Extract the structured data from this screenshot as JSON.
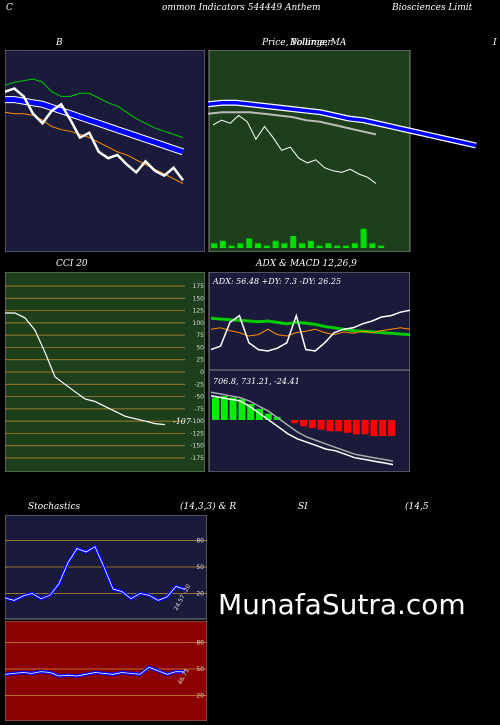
{
  "header": {
    "left": "C",
    "title": "ommon  Indicators 544449 Anthem",
    "right": "Biosciences Limit"
  },
  "panels": {
    "bollinger": {
      "label": "B",
      "label_right": ""
    },
    "price": {
      "label": "Price,  Volume,  MA",
      "label_overlap": "Bollinger",
      "edge": "I"
    },
    "cci": {
      "label": "CCI 20",
      "value_label": "-107"
    },
    "adx": {
      "label": "ADX  & MACD 12,26,9",
      "adx_text": "ADX: 56.48  +DY: 7.3 -DY: 26.25",
      "macd_text": "706.8,  731.21,  -24.41"
    },
    "stoch": {
      "label": "Stochastics",
      "params": "(14,3,3) & R",
      "value_label": "24.57 -20"
    },
    "rsi": {
      "label": "SI",
      "params": "(14,5",
      "value_label": "46.71"
    }
  },
  "watermark": "MunafaSutra.com",
  "colors": {
    "panel_navy": "#1a1a3a",
    "panel_green": "#1e3f1c",
    "panel_red": "#8b0000",
    "blue": "#0000ff",
    "white": "#ffffff",
    "green": "#00cc00",
    "orange": "#ff8c00"
  },
  "chart_data": [
    {
      "type": "line",
      "title": "B",
      "series": [
        {
          "values": [
            100,
            102,
            97,
            86,
            80,
            88,
            92,
            82,
            71,
            74,
            62,
            58,
            60,
            54,
            49,
            56,
            50,
            47,
            52,
            44
          ]
        },
        {
          "values": [
            95,
            95,
            94,
            93,
            92,
            90,
            88,
            86,
            84,
            82,
            80,
            78,
            76,
            74,
            72,
            70,
            68,
            66,
            64,
            62
          ]
        },
        {
          "values": [
            104,
            106,
            107,
            108,
            106,
            100,
            97,
            97,
            99,
            99,
            96,
            93,
            91,
            87,
            83,
            80,
            77,
            75,
            73,
            71
          ]
        },
        {
          "values": [
            87,
            86,
            86,
            85,
            82,
            78,
            76,
            75,
            73,
            71,
            68,
            65,
            62,
            60,
            57,
            54,
            51,
            48,
            45,
            42
          ]
        }
      ]
    },
    {
      "type": "line",
      "title": "Price,  Volume,  MA",
      "series": [
        {
          "values": [
            92,
            93,
            93,
            92,
            91,
            90,
            89,
            88,
            87,
            85,
            83,
            82,
            80,
            78,
            76,
            74,
            72,
            70,
            68,
            66
          ]
        },
        {
          "values": [
            86,
            87,
            87,
            87,
            86,
            85,
            84,
            82,
            81,
            79,
            77,
            75,
            73
          ]
        },
        {
          "values": [
            79,
            82,
            80,
            85,
            81,
            70,
            78,
            71,
            63,
            65,
            58,
            55,
            57,
            52,
            50,
            49,
            51,
            48,
            46,
            42
          ]
        }
      ],
      "volume": [
        2,
        3,
        1,
        2,
        4,
        2,
        1,
        3,
        2,
        5,
        2,
        3,
        1,
        2,
        1,
        1,
        2,
        8,
        2,
        1
      ]
    },
    {
      "type": "line",
      "title": "CCI 20",
      "ylim": [
        -175,
        175
      ],
      "yticks": [
        175,
        150,
        125,
        100,
        75,
        50,
        25,
        0,
        -25,
        -50,
        -75,
        -100,
        -125,
        -150,
        -175
      ],
      "series": [
        {
          "values": [
            120,
            120,
            110,
            85,
            40,
            -10,
            -25,
            -40,
            -55,
            -60,
            -70,
            -80,
            -90,
            -95,
            -100,
            -105,
            -107
          ]
        }
      ]
    },
    {
      "type": "line",
      "title": "ADX  & MACD 12,26,9",
      "adx": 56.48,
      "plus_di": 7.3,
      "minus_di": 26.25,
      "macd": 706.8,
      "signal": 731.21,
      "histogram": -24.41
    },
    {
      "type": "line",
      "title": "Stochastics",
      "yticks": [
        80,
        50,
        20
      ],
      "series": [
        {
          "values": [
            15,
            12,
            17,
            20,
            14,
            18,
            31,
            55,
            71,
            67,
            73,
            50,
            25,
            22,
            14,
            20,
            18,
            12,
            16,
            28,
            24.57
          ]
        }
      ]
    },
    {
      "type": "line",
      "title": "SI",
      "yticks": [
        80,
        50,
        20
      ],
      "series": [
        {
          "values": [
            44,
            45,
            46,
            45,
            47,
            46,
            42,
            43,
            42,
            44,
            46,
            45,
            44,
            46,
            45,
            44,
            52,
            48,
            44,
            47,
            46.71
          ]
        }
      ]
    }
  ]
}
